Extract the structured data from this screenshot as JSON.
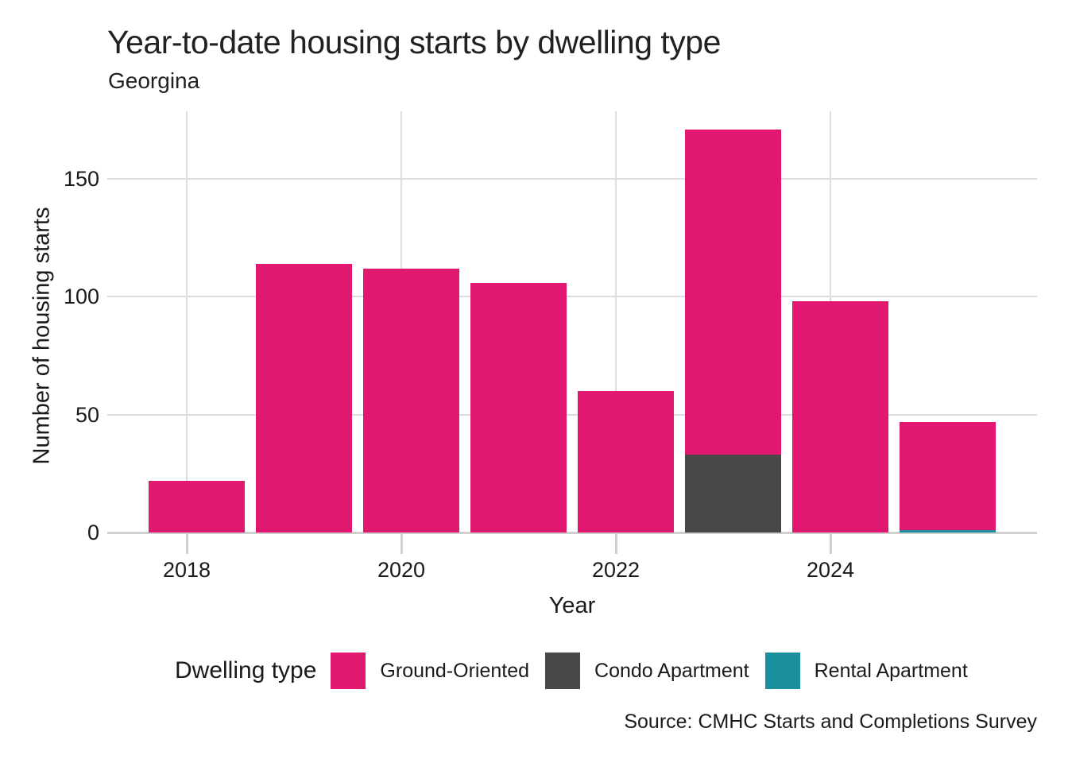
{
  "title": "Year-to-date housing starts by dwelling type",
  "subtitle": "Georgina",
  "axes": {
    "x_label": "Year",
    "y_label": "Number of housing starts"
  },
  "legend": {
    "title": "Dwelling type",
    "position": "bottom",
    "items": [
      {
        "label": "Ground-Oriented",
        "color": "#e1186f"
      },
      {
        "label": "Condo Apartment",
        "color": "#4a474b"
      },
      {
        "label": "Rental Apartment",
        "color": "#1b8f9e"
      }
    ]
  },
  "source": "Source: CMHC Starts and Completions Survey",
  "colors": {
    "background": "#ffffff",
    "gridline": "#dcdcdc",
    "axis_line": "#cfcfcf",
    "text": "#1a1a1a"
  },
  "chart_data": {
    "type": "bar",
    "stacked": true,
    "stack_order": "bottom-to-top is reverse of legend order",
    "title": "Year-to-date housing starts by dwelling type",
    "subtitle": "Georgina",
    "xlabel": "Year",
    "ylabel": "Number of housing starts",
    "categories": [
      2018,
      2019,
      2020,
      2021,
      2022,
      2023,
      2024,
      2025
    ],
    "series": [
      {
        "name": "Ground-Oriented",
        "color": "#e1186f",
        "values": [
          22,
          114,
          112,
          106,
          60,
          138,
          98,
          46
        ]
      },
      {
        "name": "Condo Apartment",
        "color": "#4a474b",
        "values": [
          0,
          0,
          0,
          0,
          0,
          33,
          0,
          0
        ]
      },
      {
        "name": "Rental Apartment",
        "color": "#1b8f9e",
        "values": [
          0,
          0,
          0,
          0,
          0,
          0,
          0,
          1
        ]
      }
    ],
    "totals": [
      22,
      114,
      112,
      106,
      60,
      171,
      98,
      47
    ],
    "y_ticks": [
      0,
      50,
      100,
      150
    ],
    "x_ticks": [
      2018,
      2020,
      2022,
      2024
    ],
    "ylim": [
      0,
      178
    ],
    "grid": true
  }
}
